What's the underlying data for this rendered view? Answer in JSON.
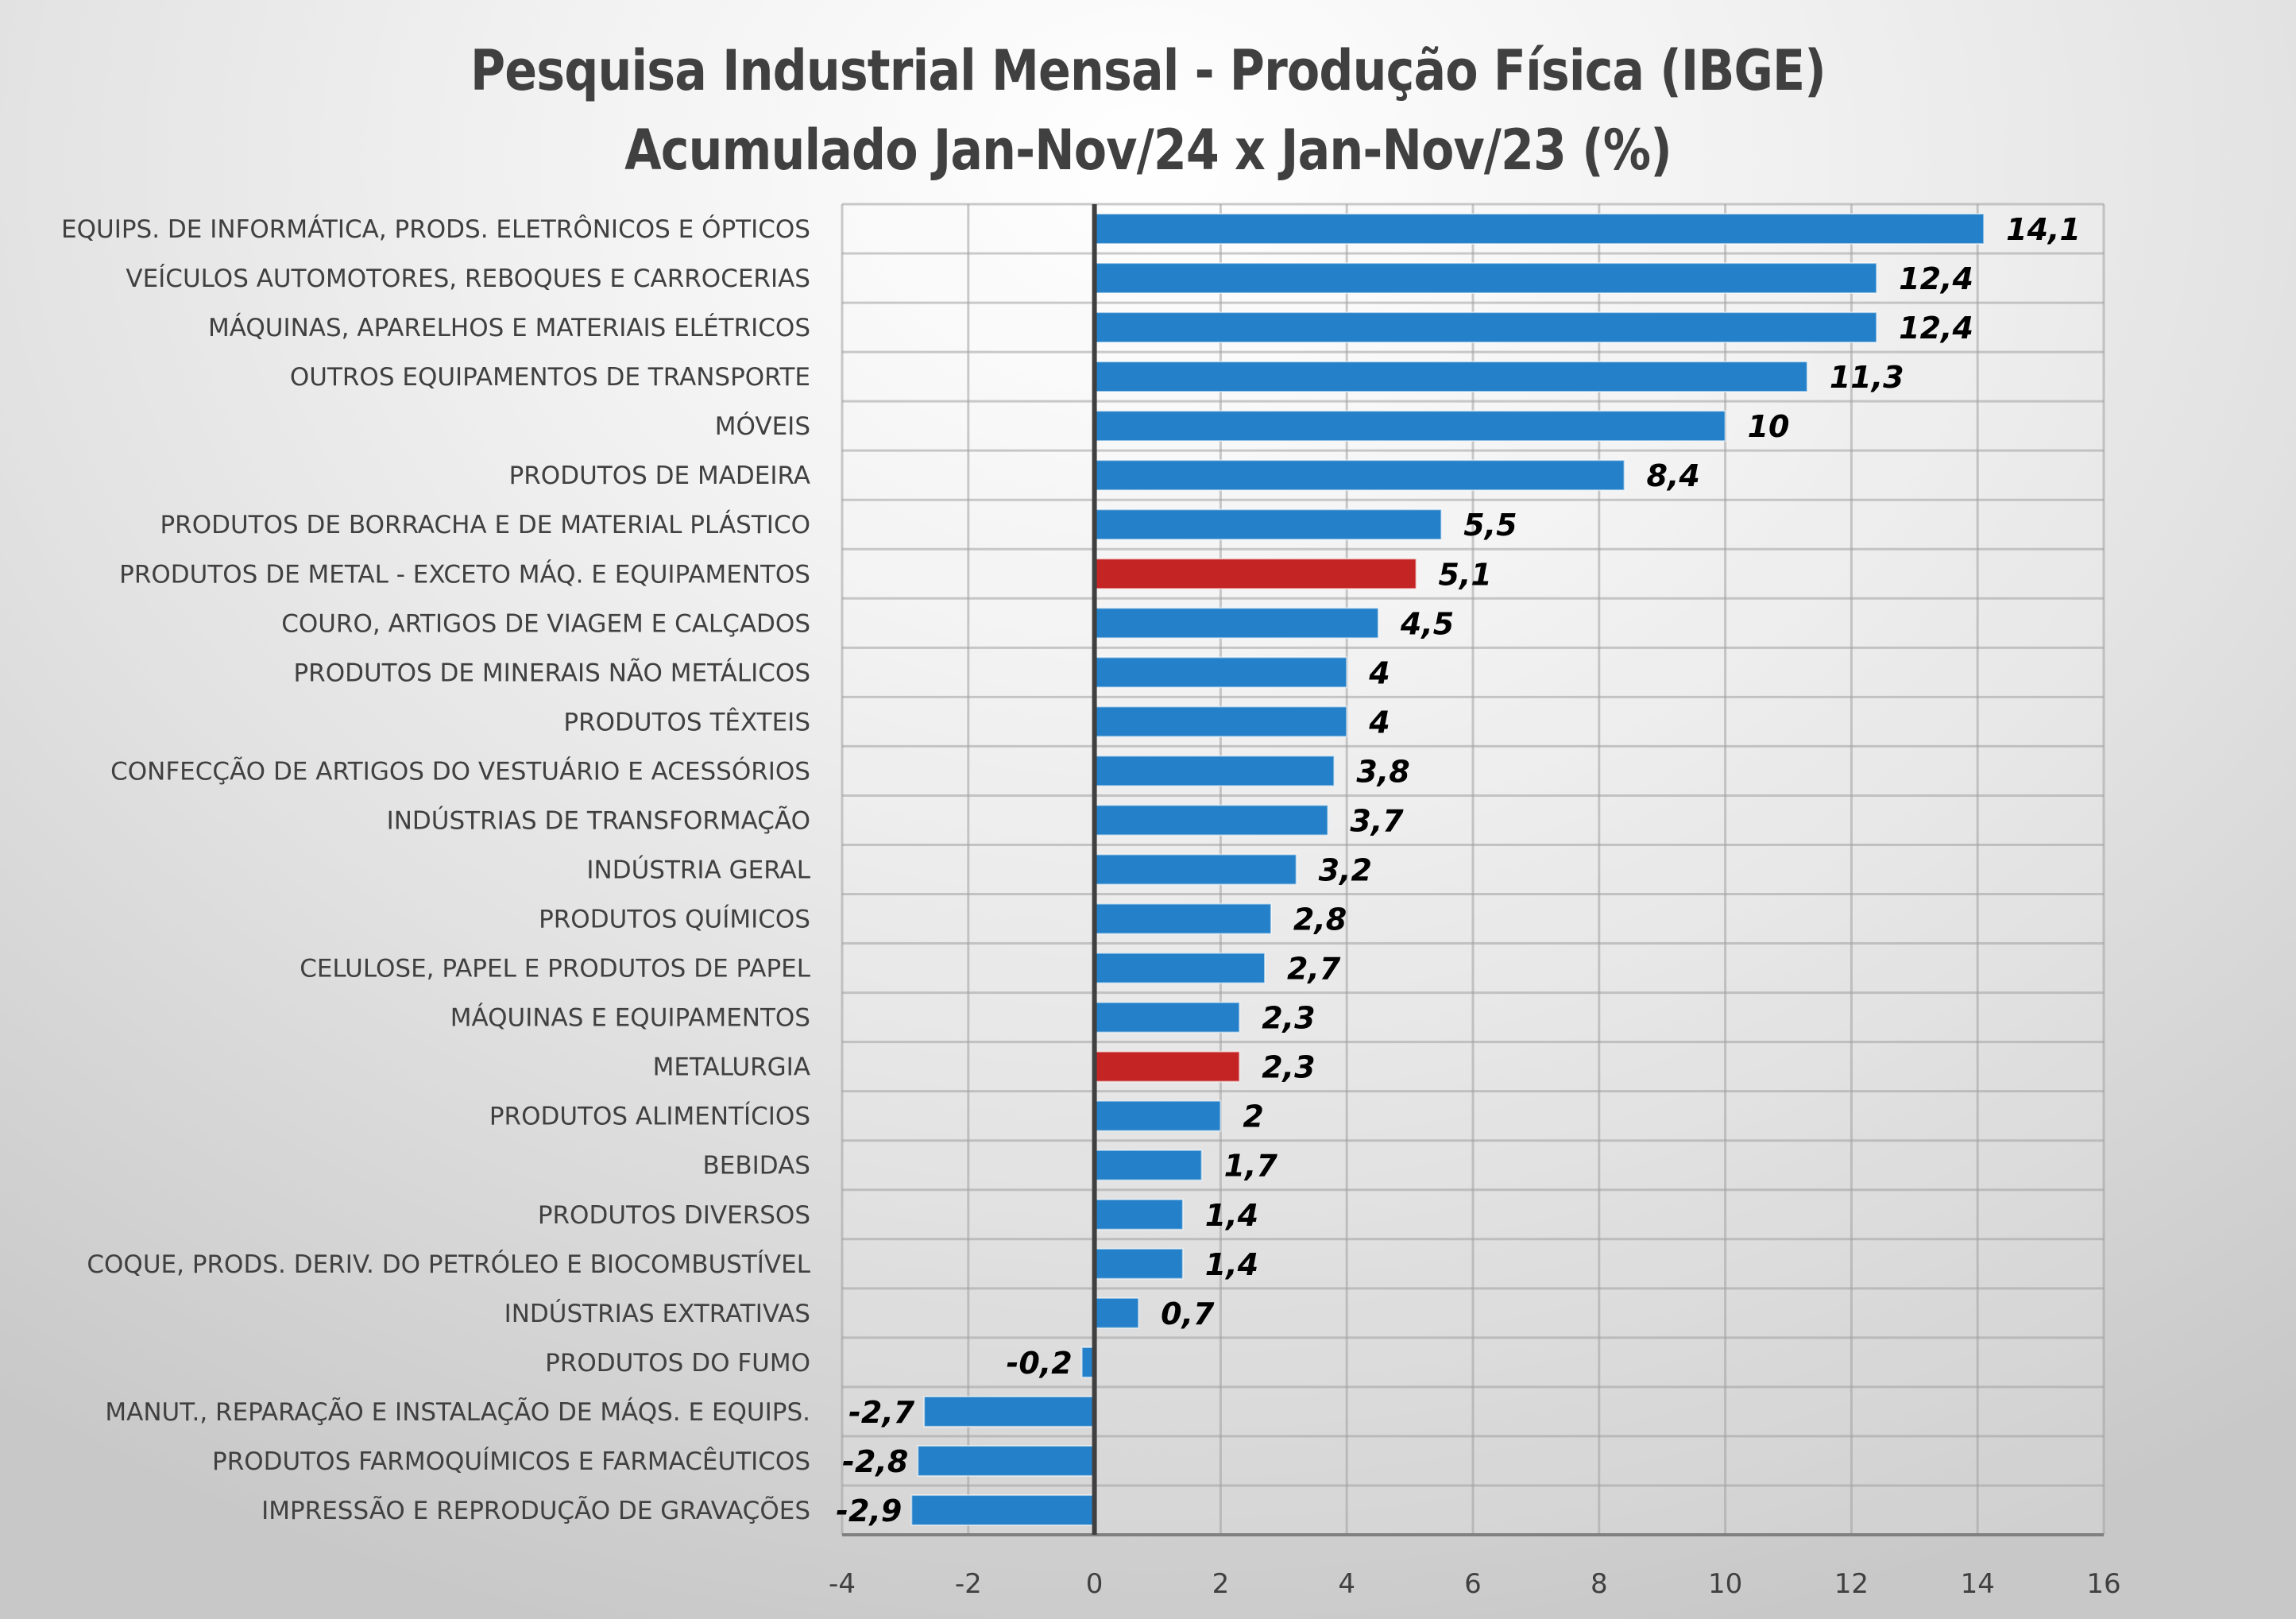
{
  "chart_data": {
    "type": "bar",
    "orientation": "horizontal",
    "title": "Pesquisa Industrial Mensal - Produção Física (IBGE)",
    "subtitle": "Acumulado Jan-Nov/24 x Jan-Nov/23 (%)",
    "xlabel": "",
    "ylabel": "",
    "xlim": [
      -4,
      16
    ],
    "xticks": [
      -4,
      -2,
      0,
      2,
      4,
      6,
      8,
      10,
      12,
      14,
      16
    ],
    "xtick_labels": [
      "-4",
      "-2",
      "0",
      "2",
      "4",
      "6",
      "8",
      "10",
      "12",
      "14",
      "16"
    ],
    "grid": true,
    "legend": "none",
    "colors": {
      "default": "#2480C8",
      "highlight": "#C42424",
      "axis": "#404040",
      "grid": "#a0a0a0"
    },
    "categories": [
      "EQUIPS. DE INFORMÁTICA, PRODS. ELETRÔNICOS E ÓPTICOS",
      "VEÍCULOS AUTOMOTORES, REBOQUES E CARROCERIAS",
      "MÁQUINAS, APARELHOS E MATERIAIS ELÉTRICOS",
      "OUTROS EQUIPAMENTOS DE TRANSPORTE",
      "MÓVEIS",
      "PRODUTOS DE MADEIRA",
      "PRODUTOS DE BORRACHA E DE MATERIAL PLÁSTICO",
      "PRODUTOS DE METAL - EXCETO MÁQ. E EQUIPAMENTOS",
      "COURO, ARTIGOS DE VIAGEM E CALÇADOS",
      "PRODUTOS DE MINERAIS NÃO METÁLICOS",
      "PRODUTOS TÊXTEIS",
      "CONFECÇÃO DE ARTIGOS DO VESTUÁRIO E ACESSÓRIOS",
      "INDÚSTRIAS DE TRANSFORMAÇÃO",
      "INDÚSTRIA GERAL",
      "PRODUTOS QUÍMICOS",
      "CELULOSE, PAPEL E PRODUTOS DE PAPEL",
      "MÁQUINAS E EQUIPAMENTOS",
      "METALURGIA",
      "PRODUTOS ALIMENTÍCIOS",
      "BEBIDAS",
      "PRODUTOS DIVERSOS",
      "COQUE, PRODS. DERIV. DO PETRÓLEO E BIOCOMBUSTÍVEL",
      "INDÚSTRIAS EXTRATIVAS",
      "PRODUTOS DO FUMO",
      "MANUT., REPARAÇÃO E INSTALAÇÃO DE MÁQS. E EQUIPS.",
      "PRODUTOS FARMOQUÍMICOS E FARMACÊUTICOS",
      "IMPRESSÃO E REPRODUÇÃO DE GRAVAÇÕES"
    ],
    "values": [
      14.1,
      12.4,
      12.4,
      11.3,
      10,
      8.4,
      5.5,
      5.1,
      4.5,
      4,
      4,
      3.8,
      3.7,
      3.2,
      2.8,
      2.7,
      2.3,
      2.3,
      2,
      1.7,
      1.4,
      1.4,
      0.7,
      -0.2,
      -2.7,
      -2.8,
      -2.9
    ],
    "value_labels": [
      "14,1",
      "12,4",
      "12,4",
      "11,3",
      "10",
      "8,4",
      "5,5",
      "5,1",
      "4,5",
      "4",
      "4",
      "3,8",
      "3,7",
      "3,2",
      "2,8",
      "2,7",
      "2,3",
      "2,3",
      "2",
      "1,7",
      "1,4",
      "1,4",
      "0,7",
      "-0,2",
      "-2,7",
      "-2,8",
      "-2,9"
    ],
    "highlighted": [
      false,
      false,
      false,
      false,
      false,
      false,
      false,
      true,
      false,
      false,
      false,
      false,
      false,
      false,
      false,
      false,
      false,
      true,
      false,
      false,
      false,
      false,
      false,
      false,
      false,
      false,
      false
    ]
  }
}
